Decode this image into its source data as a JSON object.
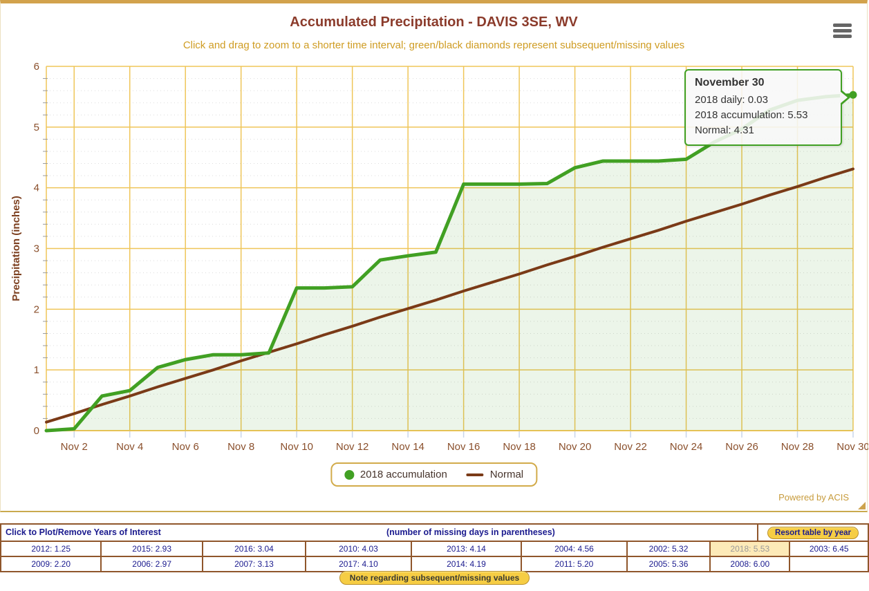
{
  "colors": {
    "accumulation_green": "#41a023",
    "accumulation_fill": "rgba(65,160,35,0.10)",
    "normal_brown": "#7a3a17",
    "grid_gold": "#efc558",
    "axis_text_brown": "#8a4f2b",
    "axis_title_brown": "#7d4020",
    "title_maroon": "#8b3b2b",
    "subtitle_gold": "#cf9c22",
    "navy": "#1a1a8e",
    "x_tick_blue": "#c9d5ea",
    "minor_tick_gray": "#999999",
    "minor_grid_gray": "#dcdcdc"
  },
  "chart": {
    "title": "Accumulated Precipitation - DAVIS 3SE, WV",
    "subtitle": "Click and drag to zoom to a shorter time interval; green/black diamonds represent subsequent/missing values",
    "y_axis_title": "Precipitation (inches)",
    "powered_by": "Powered by ACIS"
  },
  "chart_data": {
    "type": "line",
    "title": "Accumulated Precipitation - DAVIS 3SE, WV",
    "xlabel": "",
    "ylabel": "Precipitation (inches)",
    "ylim": [
      0,
      6
    ],
    "yticks": [
      0,
      1,
      2,
      3,
      4,
      5,
      6
    ],
    "minor_tick_interval": 0.2,
    "grid": true,
    "legend_position": "bottom-center",
    "x": [
      "Nov 1",
      "Nov 2",
      "Nov 3",
      "Nov 4",
      "Nov 5",
      "Nov 6",
      "Nov 7",
      "Nov 8",
      "Nov 9",
      "Nov 10",
      "Nov 11",
      "Nov 12",
      "Nov 13",
      "Nov 14",
      "Nov 15",
      "Nov 16",
      "Nov 17",
      "Nov 18",
      "Nov 19",
      "Nov 20",
      "Nov 21",
      "Nov 22",
      "Nov 23",
      "Nov 24",
      "Nov 25",
      "Nov 26",
      "Nov 27",
      "Nov 28",
      "Nov 29",
      "Nov 30"
    ],
    "x_tick_labels": [
      "Nov 2",
      "Nov 4",
      "Nov 6",
      "Nov 8",
      "Nov 10",
      "Nov 12",
      "Nov 14",
      "Nov 16",
      "Nov 18",
      "Nov 20",
      "Nov 22",
      "Nov 24",
      "Nov 26",
      "Nov 28",
      "Nov 30"
    ],
    "series": [
      {
        "name": "2018 accumulation",
        "color": "#41a023",
        "area": true,
        "values": [
          0.0,
          0.03,
          0.57,
          0.66,
          1.04,
          1.17,
          1.25,
          1.25,
          1.28,
          2.35,
          2.35,
          2.37,
          2.81,
          2.88,
          2.94,
          4.06,
          4.06,
          4.06,
          4.07,
          4.33,
          4.44,
          4.44,
          4.44,
          4.47,
          4.75,
          4.97,
          5.28,
          5.44,
          5.5,
          5.53
        ]
      },
      {
        "name": "Normal",
        "color": "#7a3a17",
        "area": false,
        "values": [
          0.14,
          0.28,
          0.43,
          0.57,
          0.72,
          0.86,
          1.0,
          1.15,
          1.29,
          1.43,
          1.58,
          1.72,
          1.87,
          2.01,
          2.15,
          2.3,
          2.44,
          2.58,
          2.73,
          2.87,
          3.02,
          3.16,
          3.3,
          3.45,
          3.59,
          3.73,
          3.88,
          4.02,
          4.17,
          4.31
        ]
      }
    ]
  },
  "tooltip": {
    "title": "November 30",
    "line1": "2018 daily: 0.03",
    "line2": "2018 accumulation: 5.53",
    "line3": "Normal: 4.31"
  },
  "legend": {
    "accumulation_label": "2018 accumulation",
    "normal_label": "Normal"
  },
  "years_table": {
    "header_left": "Click to Plot/Remove Years of Interest",
    "header_center": "(number of missing days in parentheses)",
    "resort_button_label": "Resort table by year",
    "highlighted_cell": "2018: 5.53",
    "rows": [
      [
        "2012: 1.25",
        "2015: 2.93",
        "2016: 3.04",
        "2010: 4.03",
        "2013: 4.14",
        "2004: 4.56",
        "2002: 5.32",
        "2018: 5.53",
        "2003: 6.45"
      ],
      [
        "2009: 2.20",
        "2006: 2.97",
        "2007: 3.13",
        "2017: 4.10",
        "2014: 4.19",
        "2011: 5.20",
        "2005: 5.36",
        "2008: 6.00",
        ""
      ]
    ]
  },
  "note_button_label": "Note regarding subsequent/missing values"
}
